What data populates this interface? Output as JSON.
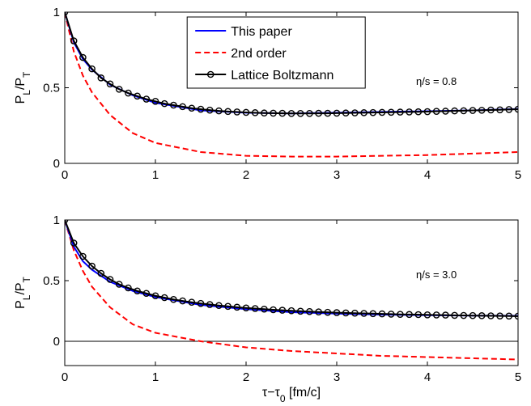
{
  "chart_data": [
    {
      "type": "line",
      "xlim": [
        0,
        5
      ],
      "ylim": [
        0,
        1
      ],
      "xticks": [
        0,
        1,
        2,
        3,
        4,
        5
      ],
      "yticks": [
        0,
        0.5,
        1
      ],
      "ylabel": "P_L/P_T",
      "xlabel": "",
      "grid": false,
      "zero_line": false,
      "annotation": "η/s = 0.8",
      "legend_position": "top-center",
      "series": [
        {
          "name": "This paper",
          "color": "#0000ff",
          "style": "solid",
          "x": [
            0,
            0.1,
            0.2,
            0.3,
            0.5,
            0.75,
            1.0,
            1.5,
            2.0,
            2.5,
            3.0,
            3.5,
            4.0,
            4.5,
            5.0
          ],
          "y": [
            1.0,
            0.8,
            0.69,
            0.62,
            0.52,
            0.45,
            0.4,
            0.35,
            0.335,
            0.33,
            0.335,
            0.34,
            0.345,
            0.35,
            0.36
          ]
        },
        {
          "name": "2nd order",
          "color": "#ff0000",
          "style": "dashed",
          "x": [
            0,
            0.1,
            0.2,
            0.3,
            0.5,
            0.75,
            1.0,
            1.5,
            2.0,
            2.5,
            3.0,
            3.5,
            4.0,
            4.5,
            5.0
          ],
          "y": [
            1.0,
            0.74,
            0.58,
            0.47,
            0.32,
            0.2,
            0.135,
            0.075,
            0.05,
            0.045,
            0.045,
            0.05,
            0.055,
            0.065,
            0.075
          ]
        },
        {
          "name": "Lattice Boltzmann",
          "color": "#000000",
          "style": "solid-circle",
          "x": [
            0,
            0.1,
            0.2,
            0.3,
            0.4,
            0.5,
            0.6,
            0.7,
            0.8,
            0.9,
            1.0,
            1.1,
            1.2,
            1.3,
            1.4,
            1.5,
            1.6,
            1.7,
            1.8,
            1.9,
            2.0,
            2.1,
            2.2,
            2.3,
            2.4,
            2.5,
            2.6,
            2.7,
            2.8,
            2.9,
            3.0,
            3.1,
            3.2,
            3.3,
            3.4,
            3.5,
            3.6,
            3.7,
            3.8,
            3.9,
            4.0,
            4.1,
            4.2,
            4.3,
            4.4,
            4.5,
            4.6,
            4.7,
            4.8,
            4.9,
            5.0
          ],
          "y": [
            1.0,
            0.81,
            0.7,
            0.625,
            0.565,
            0.525,
            0.49,
            0.465,
            0.445,
            0.425,
            0.41,
            0.395,
            0.385,
            0.375,
            0.365,
            0.358,
            0.352,
            0.347,
            0.343,
            0.34,
            0.337,
            0.335,
            0.333,
            0.332,
            0.331,
            0.33,
            0.33,
            0.33,
            0.331,
            0.331,
            0.332,
            0.333,
            0.334,
            0.335,
            0.336,
            0.337,
            0.338,
            0.339,
            0.34,
            0.341,
            0.342,
            0.344,
            0.345,
            0.347,
            0.348,
            0.35,
            0.351,
            0.353,
            0.354,
            0.356,
            0.358
          ]
        }
      ]
    },
    {
      "type": "line",
      "xlim": [
        0,
        5
      ],
      "ylim": [
        -0.2,
        1
      ],
      "xticks": [
        0,
        1,
        2,
        3,
        4,
        5
      ],
      "yticks": [
        0,
        0.5,
        1
      ],
      "ylabel": "P_L/P_T",
      "xlabel": "τ−τ_0 [fm/c]",
      "grid": false,
      "zero_line": true,
      "annotation": "η/s = 3.0",
      "series": [
        {
          "name": "This paper",
          "color": "#0000ff",
          "style": "solid",
          "x": [
            0,
            0.1,
            0.2,
            0.3,
            0.5,
            0.75,
            1.0,
            1.5,
            2.0,
            2.5,
            3.0,
            3.5,
            4.0,
            4.5,
            5.0
          ],
          "y": [
            1.0,
            0.78,
            0.66,
            0.59,
            0.49,
            0.415,
            0.365,
            0.3,
            0.265,
            0.24,
            0.228,
            0.22,
            0.215,
            0.212,
            0.21
          ]
        },
        {
          "name": "2nd order",
          "color": "#ff0000",
          "style": "dashed",
          "x": [
            0,
            0.1,
            0.2,
            0.3,
            0.5,
            0.75,
            1.0,
            1.5,
            2.0,
            2.5,
            3.0,
            3.5,
            4.0,
            4.5,
            5.0
          ],
          "y": [
            1.0,
            0.75,
            0.58,
            0.45,
            0.28,
            0.14,
            0.07,
            0.0,
            -0.05,
            -0.08,
            -0.1,
            -0.12,
            -0.13,
            -0.14,
            -0.15
          ]
        },
        {
          "name": "Lattice Boltzmann",
          "color": "#000000",
          "style": "solid-circle",
          "x": [
            0,
            0.1,
            0.2,
            0.3,
            0.4,
            0.5,
            0.6,
            0.7,
            0.8,
            0.9,
            1.0,
            1.1,
            1.2,
            1.3,
            1.4,
            1.5,
            1.6,
            1.7,
            1.8,
            1.9,
            2.0,
            2.1,
            2.2,
            2.3,
            2.4,
            2.5,
            2.6,
            2.7,
            2.8,
            2.9,
            3.0,
            3.1,
            3.2,
            3.3,
            3.4,
            3.5,
            3.6,
            3.7,
            3.8,
            3.9,
            4.0,
            4.1,
            4.2,
            4.3,
            4.4,
            4.5,
            4.6,
            4.7,
            4.8,
            4.9,
            5.0
          ],
          "y": [
            1.0,
            0.81,
            0.7,
            0.62,
            0.56,
            0.51,
            0.47,
            0.44,
            0.415,
            0.395,
            0.375,
            0.36,
            0.345,
            0.333,
            0.322,
            0.312,
            0.303,
            0.295,
            0.288,
            0.281,
            0.275,
            0.27,
            0.265,
            0.26,
            0.256,
            0.252,
            0.248,
            0.245,
            0.242,
            0.239,
            0.236,
            0.234,
            0.232,
            0.23,
            0.228,
            0.226,
            0.224,
            0.222,
            0.221,
            0.22,
            0.218,
            0.217,
            0.216,
            0.214,
            0.213,
            0.212,
            0.211,
            0.21,
            0.209,
            0.208,
            0.207
          ]
        }
      ]
    }
  ]
}
